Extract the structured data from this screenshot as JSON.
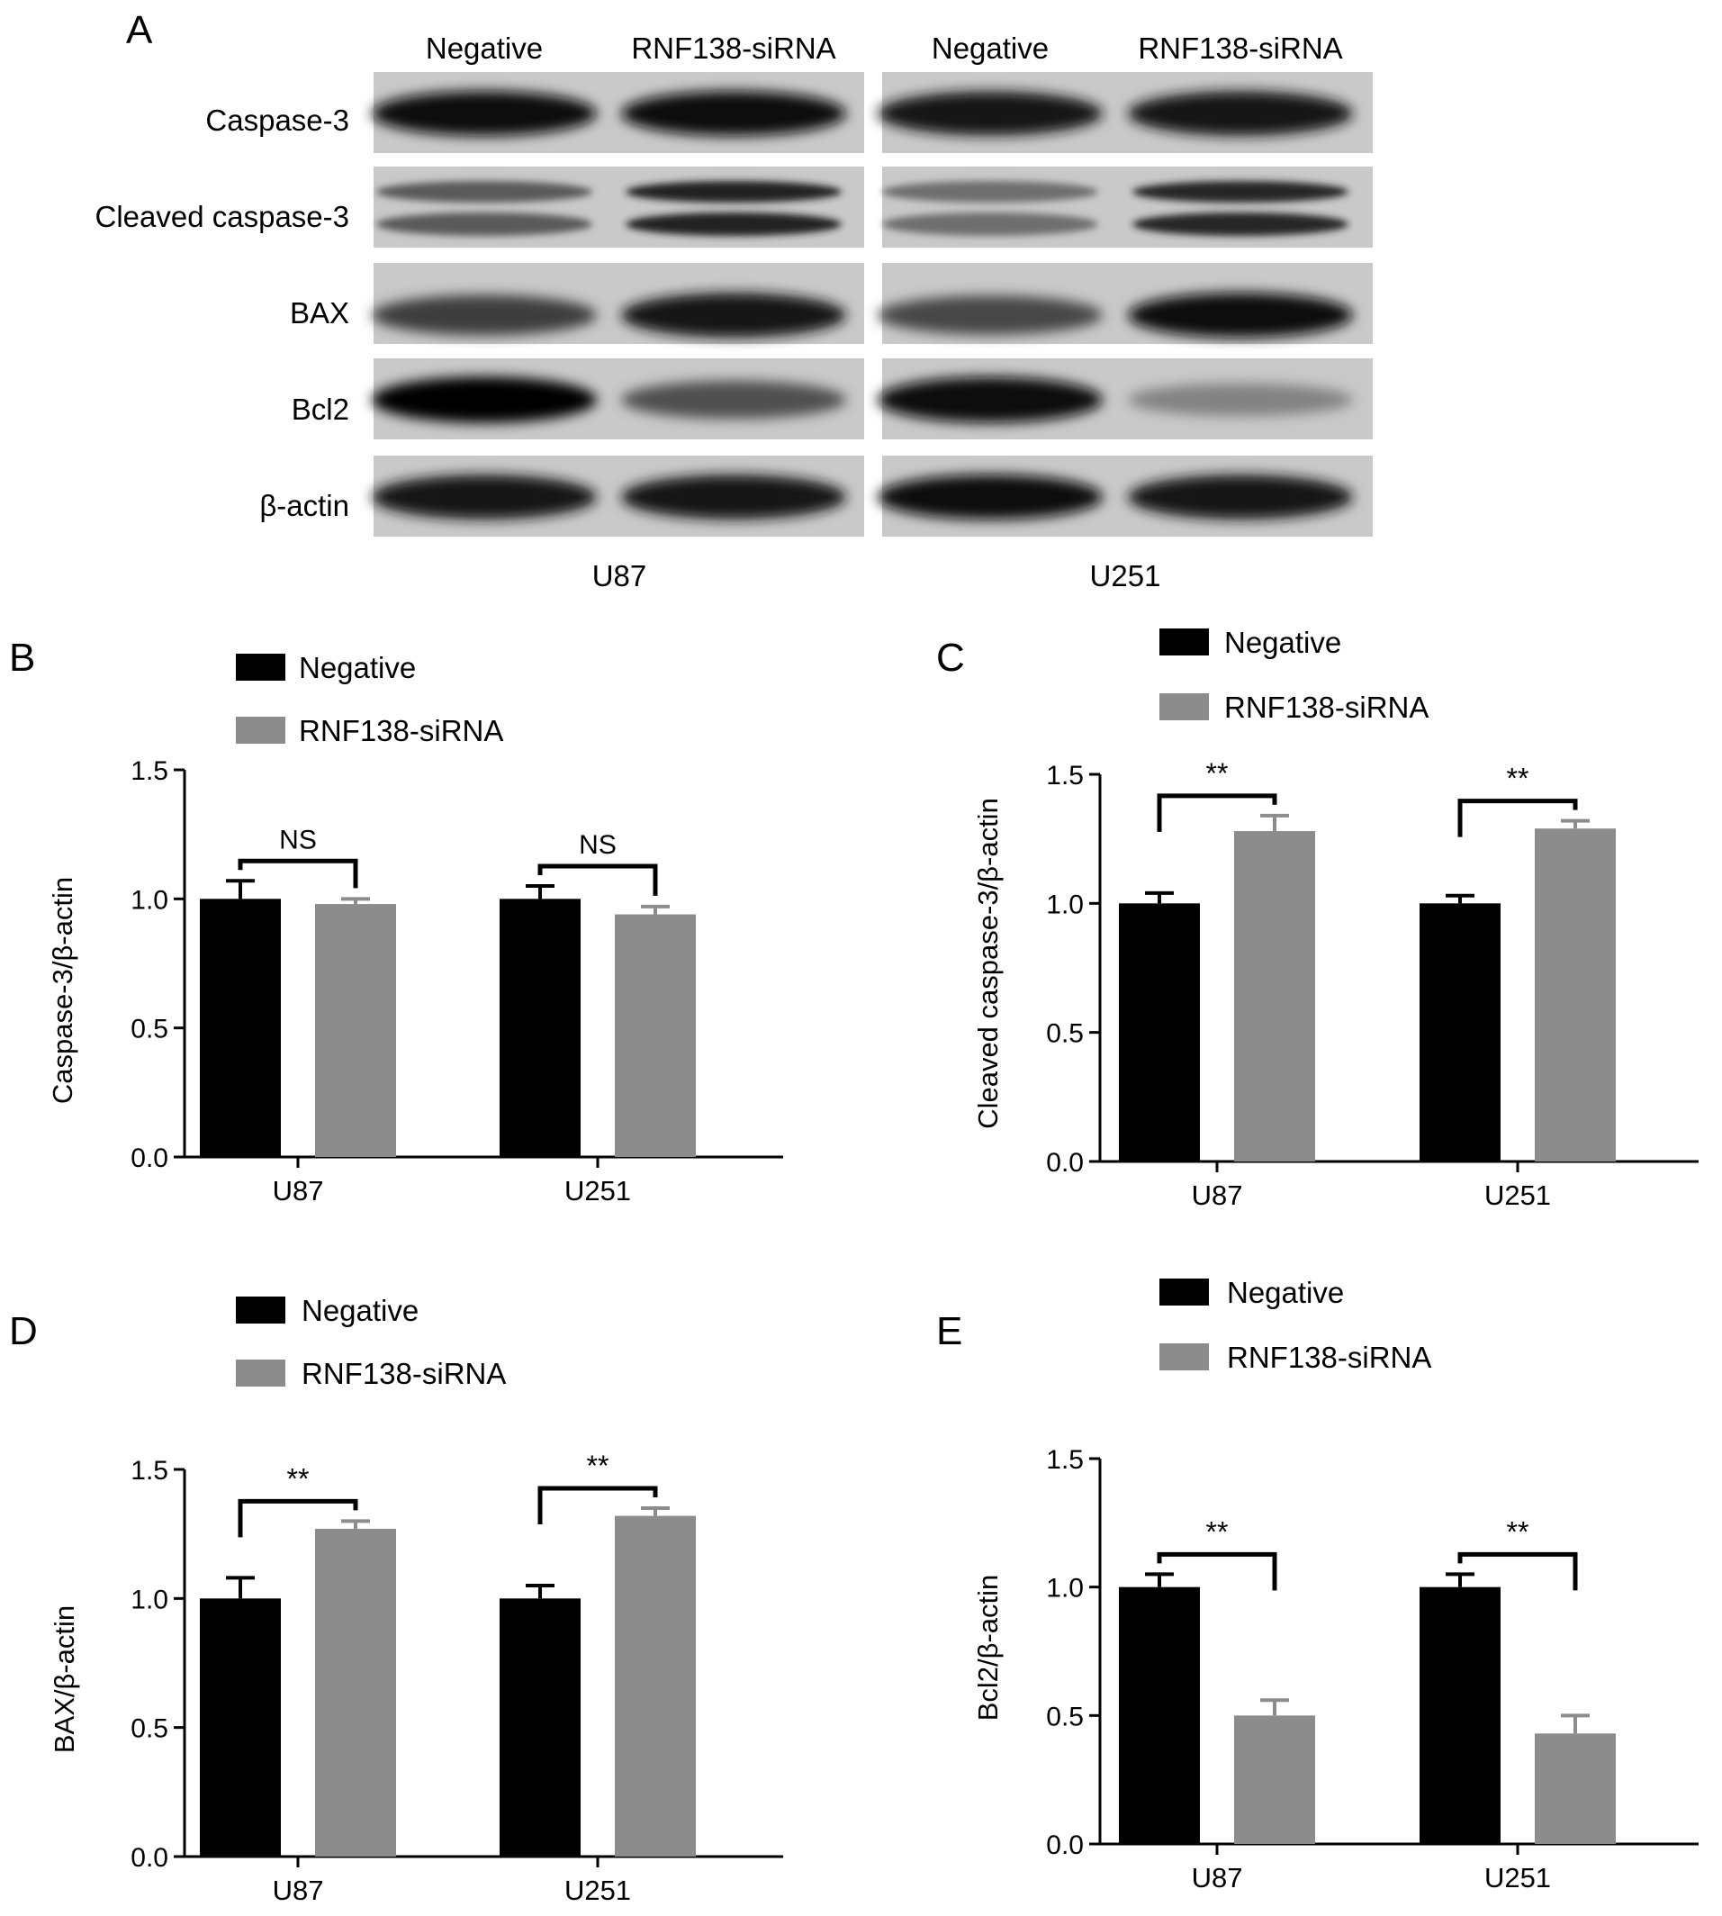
{
  "panel_labels": {
    "a": "A",
    "b": "B",
    "c": "C",
    "d": "D",
    "e": "E"
  },
  "blot": {
    "lane_labels": [
      "Negative",
      "RNF138-siRNA",
      "Negative",
      "RNF138-siRNA"
    ],
    "cell_lines": [
      "U87",
      "U251"
    ],
    "rows": [
      {
        "label": "Caspase-3",
        "bands": [
          0.92,
          0.92,
          0.88,
          0.9
        ]
      },
      {
        "label": "Cleaved caspase-3",
        "bands": [
          0.55,
          0.82,
          0.45,
          0.8
        ]
      },
      {
        "label": "BAX",
        "bands": [
          0.7,
          0.9,
          0.65,
          0.92
        ]
      },
      {
        "label": "Bcl2",
        "bands": [
          0.98,
          0.6,
          0.96,
          0.35
        ]
      },
      {
        "label": "β-actin",
        "bands": [
          0.9,
          0.9,
          0.92,
          0.9
        ]
      }
    ]
  },
  "chart_data": [
    {
      "panel": "B",
      "type": "bar",
      "categories": [
        "U87",
        "U251"
      ],
      "series": [
        {
          "name": "Negative",
          "values": [
            1.0,
            1.0
          ],
          "errors": [
            0.07,
            0.05
          ],
          "color": "#000000"
        },
        {
          "name": "RNF138-siRNA",
          "values": [
            0.98,
            0.94
          ],
          "errors": [
            0.02,
            0.03
          ],
          "color": "#8c8c8c"
        }
      ],
      "ylabel": "Caspase-3/β-actin",
      "ylim": [
        0,
        1.5
      ],
      "yticks": [
        "0.0",
        "0.5",
        "1.0",
        "1.5"
      ],
      "significance": [
        "NS",
        "NS"
      ],
      "legend_placement": "top-left"
    },
    {
      "panel": "C",
      "type": "bar",
      "categories": [
        "U87",
        "U251"
      ],
      "series": [
        {
          "name": "Negative",
          "values": [
            1.0,
            1.0
          ],
          "errors": [
            0.04,
            0.03
          ],
          "color": "#000000"
        },
        {
          "name": "RNF138-siRNA",
          "values": [
            1.28,
            1.29
          ],
          "errors": [
            0.06,
            0.03
          ],
          "color": "#8c8c8c"
        }
      ],
      "ylabel": "Cleaved caspase-3/β-actin",
      "ylim": [
        0,
        1.5
      ],
      "yticks": [
        "0.0",
        "0.5",
        "1.0",
        "1.5"
      ],
      "significance": [
        "**",
        "**"
      ],
      "legend_placement": "top-left"
    },
    {
      "panel": "D",
      "type": "bar",
      "categories": [
        "U87",
        "U251"
      ],
      "series": [
        {
          "name": "Negative",
          "values": [
            1.0,
            1.0
          ],
          "errors": [
            0.08,
            0.05
          ],
          "color": "#000000"
        },
        {
          "name": "RNF138-siRNA",
          "values": [
            1.27,
            1.32
          ],
          "errors": [
            0.03,
            0.03
          ],
          "color": "#8c8c8c"
        }
      ],
      "ylabel": "BAX/β-actin",
      "ylim": [
        0,
        1.5
      ],
      "yticks": [
        "0.0",
        "0.5",
        "1.0",
        "1.5"
      ],
      "significance": [
        "**",
        "**"
      ],
      "legend_placement": "top-left"
    },
    {
      "panel": "E",
      "type": "bar",
      "categories": [
        "U87",
        "U251"
      ],
      "series": [
        {
          "name": "Negative",
          "values": [
            1.0,
            1.0
          ],
          "errors": [
            0.05,
            0.05
          ],
          "color": "#000000"
        },
        {
          "name": "RNF138-siRNA",
          "values": [
            0.5,
            0.43
          ],
          "errors": [
            0.06,
            0.07
          ],
          "color": "#8c8c8c"
        }
      ],
      "ylabel": "Bcl2/β-actin",
      "ylim": [
        0,
        1.5
      ],
      "yticks": [
        "0.0",
        "0.5",
        "1.0",
        "1.5"
      ],
      "significance": [
        "**",
        "**"
      ],
      "legend_placement": "top-left"
    }
  ]
}
